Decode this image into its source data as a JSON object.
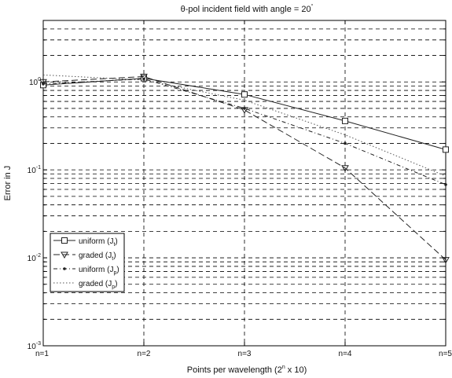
{
  "chart_data": {
    "type": "line",
    "title": "θ-pol incident field  with angle = 20",
    "title_superscript": "°",
    "xlabel_base": "Points per wavelength (2",
    "xlabel_superscript": "n",
    "xlabel_tail": " x 10)",
    "ylabel": "Error in J",
    "y_scale": "log",
    "ylim": [
      0.001,
      5
    ],
    "x": [
      1,
      2,
      3,
      4,
      5
    ],
    "x_tick_labels": [
      "n=1",
      "n=2",
      "n=3",
      "n=4",
      "n=5"
    ],
    "y_ticks": [
      {
        "value": 0.001,
        "base": "10",
        "exp": "-3"
      },
      {
        "value": 0.01,
        "base": "10",
        "exp": "-2"
      },
      {
        "value": 0.1,
        "base": "10",
        "exp": "-1"
      },
      {
        "value": 1,
        "base": "10",
        "exp": "0"
      }
    ],
    "grid": true,
    "legend_position": "lower-left",
    "series": [
      {
        "name": "uniform (J",
        "subscript": "t",
        "values": [
          0.92,
          1.1,
          0.72,
          0.36,
          0.17
        ],
        "color": "#222222",
        "dash": "none",
        "marker": "square"
      },
      {
        "name": "graded (J",
        "subscript": "t",
        "values": [
          1.0,
          1.15,
          0.48,
          0.105,
          0.0095
        ],
        "color": "#222222",
        "dash": "8,4",
        "marker": "triangle"
      },
      {
        "name": "uniform (J",
        "subscript": "p",
        "values": [
          0.95,
          1.08,
          0.5,
          0.2,
          0.068
        ],
        "color": "#222222",
        "dash": "5,3,1,3",
        "marker": "dot"
      },
      {
        "name": "graded (J",
        "subscript": "p",
        "values": [
          1.2,
          1.05,
          0.62,
          0.25,
          0.085
        ],
        "color": "#555555",
        "dash": "1.5,2.5",
        "marker": "none"
      }
    ]
  }
}
